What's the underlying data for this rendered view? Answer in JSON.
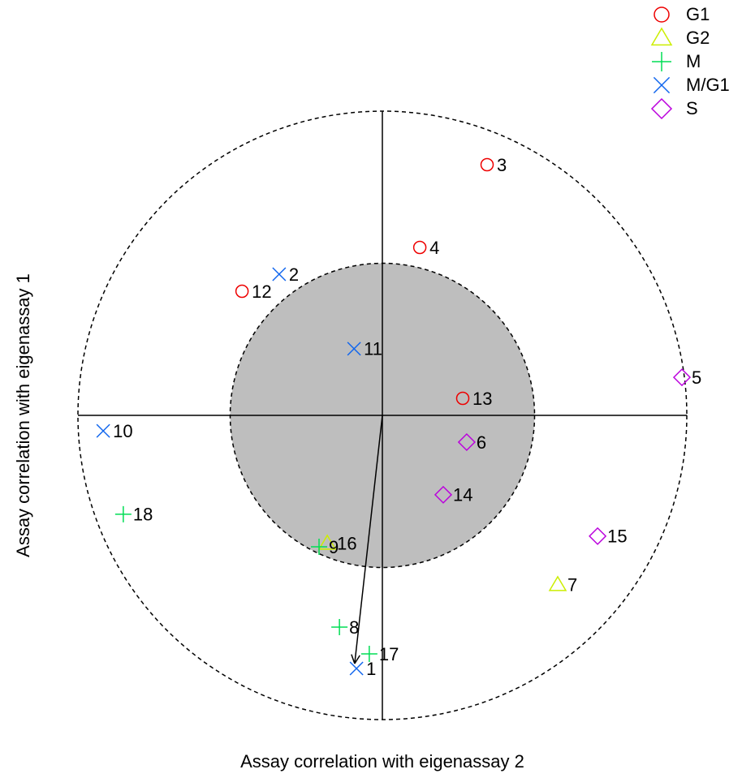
{
  "chart_data": {
    "type": "scatter",
    "x_label": "Assay correlation with eigenassay 2",
    "y_label": "Assay correlation with eigenassay 1",
    "xlim": [
      -1,
      1
    ],
    "ylim": [
      -1,
      1
    ],
    "circle_radii": [
      1,
      0.5
    ],
    "arrow": {
      "x": -0.091,
      "y": -0.816
    },
    "series": [
      {
        "name": "G1",
        "color": "#ee0000",
        "symbol": "circle",
        "labels": [
          "3",
          "4",
          "12",
          "13"
        ],
        "x": [
          0.344,
          0.123,
          -0.461,
          0.264
        ],
        "values": [
          0.824,
          0.552,
          0.408,
          0.056
        ]
      },
      {
        "name": "G2",
        "color": "#ccee00",
        "symbol": "triangle",
        "labels": [
          "7",
          "16"
        ],
        "x": [
          0.576,
          -0.181
        ],
        "values": [
          -0.557,
          -0.421
        ]
      },
      {
        "name": "M",
        "color": "#00dd55",
        "symbol": "plus",
        "labels": [
          "8",
          "9",
          "17",
          "18"
        ],
        "x": [
          -0.141,
          -0.208,
          -0.043,
          -0.851
        ],
        "values": [
          -0.696,
          -0.432,
          -0.784,
          -0.325
        ]
      },
      {
        "name": "M/G1",
        "color": "#1166ee",
        "symbol": "cross",
        "labels": [
          "1",
          "2",
          "10",
          "11"
        ],
        "x": [
          -0.085,
          -0.339,
          -0.917,
          -0.093
        ],
        "values": [
          -0.832,
          0.464,
          -0.051,
          0.219
        ]
      },
      {
        "name": "S",
        "color": "#bb00dd",
        "symbol": "diamond",
        "labels": [
          "5",
          "6",
          "14",
          "15"
        ],
        "x": [
          0.984,
          0.277,
          0.2,
          0.707
        ],
        "values": [
          0.125,
          -0.088,
          -0.261,
          -0.397
        ]
      }
    ]
  }
}
